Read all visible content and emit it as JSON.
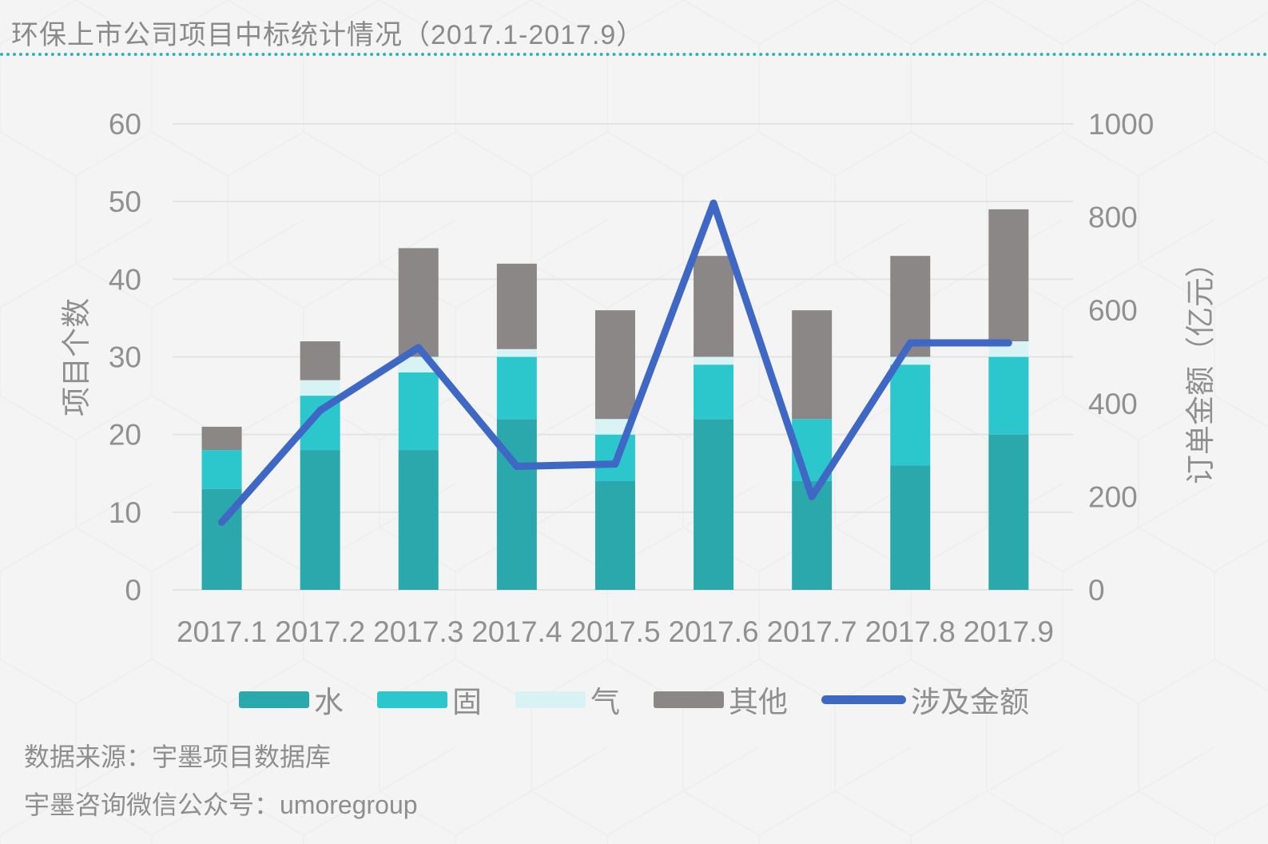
{
  "title": "环保上市公司项目中标统计情况（2017.1-2017.9）",
  "accent": {
    "title_rule_color": "#2db6b1",
    "background": "#f4f4f4",
    "grid_color": "#e3e3e3",
    "text_gray": "#8f8f8f"
  },
  "footer": {
    "line1": "数据来源：宇墨项目数据库",
    "line2": "宇墨咨询微信公众号：umoregroup"
  },
  "chart_data": {
    "type": "bar",
    "subtype": "stacked-bar-with-line",
    "categories": [
      "2017.1",
      "2017.2",
      "2017.3",
      "2017.4",
      "2017.5",
      "2017.6",
      "2017.7",
      "2017.8",
      "2017.9"
    ],
    "bar_series": [
      {
        "name": "水",
        "color": "#2aa8ab",
        "values": [
          13,
          18,
          18,
          22,
          14,
          22,
          14,
          16,
          20
        ]
      },
      {
        "name": "固",
        "color": "#2cc7cd",
        "values": [
          5,
          7,
          10,
          8,
          6,
          7,
          8,
          13,
          10
        ]
      },
      {
        "name": "气",
        "color": "#d9f3f4",
        "values": [
          0,
          2,
          2,
          1,
          2,
          1,
          0,
          1,
          2
        ]
      },
      {
        "name": "其他",
        "color": "#8a8786",
        "values": [
          3,
          5,
          14,
          11,
          14,
          13,
          14,
          13,
          17
        ]
      }
    ],
    "bar_totals": [
      21,
      32,
      44,
      42,
      36,
      43,
      36,
      43,
      49
    ],
    "line_series": {
      "name": "涉及金额",
      "color": "#3e68c4",
      "values": [
        145,
        385,
        520,
        265,
        270,
        830,
        200,
        530,
        530
      ]
    },
    "left_axis": {
      "label": "项目个数",
      "min": 0,
      "max": 60,
      "step": 10
    },
    "right_axis": {
      "label": "订单金额（亿元）",
      "min": 0,
      "max": 1000,
      "step": 200
    },
    "grid": "horizontal-only",
    "legend_position": "bottom"
  }
}
